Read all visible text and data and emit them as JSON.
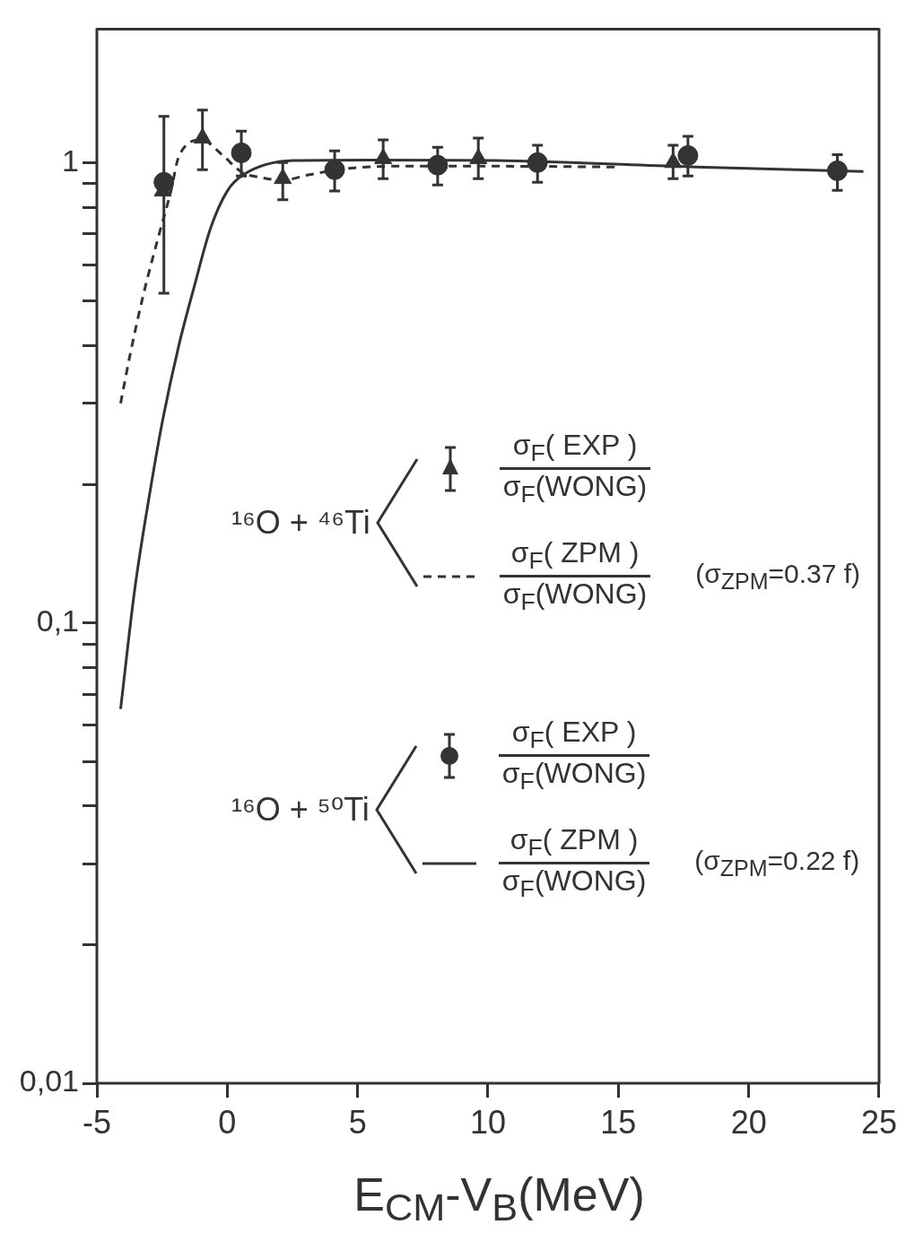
{
  "chart_data": {
    "type": "scatter",
    "xlabel": "E$_{CM}$-V$_{B}$(MeV)",
    "xlim": [
      -5,
      25
    ],
    "xticks": [
      -5,
      0,
      5,
      10,
      15,
      20,
      25
    ],
    "ylim": [
      0.01,
      1.95
    ],
    "log": "y",
    "yticks": [
      {
        "value": 0.01,
        "label": "0,01"
      },
      {
        "value": 0.02,
        "label": null
      },
      {
        "value": 0.03,
        "label": null
      },
      {
        "value": 0.04,
        "label": null
      },
      {
        "value": 0.05,
        "label": null
      },
      {
        "value": 0.06,
        "label": null
      },
      {
        "value": 0.07,
        "label": null
      },
      {
        "value": 0.08,
        "label": null
      },
      {
        "value": 0.09,
        "label": null
      },
      {
        "value": 0.1,
        "label": "0,1"
      },
      {
        "value": 0.2,
        "label": null
      },
      {
        "value": 0.3,
        "label": null
      },
      {
        "value": 0.4,
        "label": null
      },
      {
        "value": 0.5,
        "label": null
      },
      {
        "value": 0.6,
        "label": null
      },
      {
        "value": 0.7,
        "label": null
      },
      {
        "value": 0.8,
        "label": null
      },
      {
        "value": 0.9,
        "label": null
      },
      {
        "value": 1,
        "label": "1"
      }
    ],
    "annotations": [
      "¹⁶O + ⁴⁶Ti",
      "σ$_{F}$( EXP )",
      "σ$_{F}$(WONG)",
      "σ$_{F}$( ZPM )",
      "σ$_{F}$(WONG)",
      "(σ$_{ZPM}$=0.37 f)",
      "¹⁶O + ⁵⁰Ti",
      "σ$_{F}$( EXP )",
      "σ$_{F}$(WONG)",
      "σ$_{F}$( ZPM )",
      "σ$_{F}$(WONG)",
      "(σ$_{ZPM}$=0.22 f)"
    ],
    "series": [
      {
        "type": "scatter",
        "color": "#333333",
        "marker": "triangle",
        "x": [
          -2.47,
          -0.95,
          2.13,
          5.98,
          9.63,
          17.1
        ],
        "values": [
          0.867,
          1.13,
          0.923,
          1.02,
          1.02,
          1.0
        ],
        "errors": [
          null,
          [
            0.965,
            1.3
          ],
          [
            0.83,
            1.0
          ],
          [
            0.923,
            1.12
          ],
          [
            0.923,
            1.13
          ],
          [
            0.923,
            1.09
          ]
        ]
      },
      {
        "type": "line",
        "color": "#333333",
        "marker": "none",
        "line_style": "dashed",
        "x": [
          -4.09,
          -3.72,
          -3.24,
          -2.64,
          -2.16,
          -1.86,
          -0.98,
          -0.2,
          0.57,
          1.35,
          2.09,
          3.11,
          4.46,
          6.42,
          10.3,
          14.97
        ],
        "values": [
          0.3,
          0.384,
          0.51,
          0.69,
          0.867,
          1.03,
          1.12,
          1.04,
          0.952,
          0.927,
          0.915,
          0.94,
          0.969,
          0.982,
          0.982,
          0.978
        ]
      },
      {
        "type": "scatter",
        "color": "#333333",
        "marker": "circle",
        "x": [
          -2.43,
          0.54,
          4.12,
          8.07,
          11.9,
          17.67,
          23.4
        ],
        "values": [
          0.906,
          1.05,
          0.965,
          0.987,
          1.0,
          1.036,
          0.96
        ],
        "errors": [
          [
            0.52,
            1.26
          ],
          [
            0.935,
            1.17
          ],
          [
            0.867,
            1.06
          ],
          [
            0.894,
            1.08
          ],
          [
            0.906,
            1.09
          ],
          [
            0.935,
            1.14
          ],
          [
            0.87,
            1.04
          ]
        ]
      },
      {
        "type": "line",
        "color": "#333333",
        "marker": "none",
        "line_style": "solid",
        "x": [
          -4.09,
          -3.55,
          -2.94,
          -2.47,
          -1.86,
          -1.25,
          -0.64,
          0,
          0.61,
          2.53,
          5.44,
          10.3,
          18.0,
          24.4
        ],
        "values": [
          0.065,
          0.118,
          0.196,
          0.277,
          0.4,
          0.542,
          0.72,
          0.867,
          0.94,
          1.01,
          1.013,
          1.01,
          0.978,
          0.956
        ]
      }
    ]
  }
}
